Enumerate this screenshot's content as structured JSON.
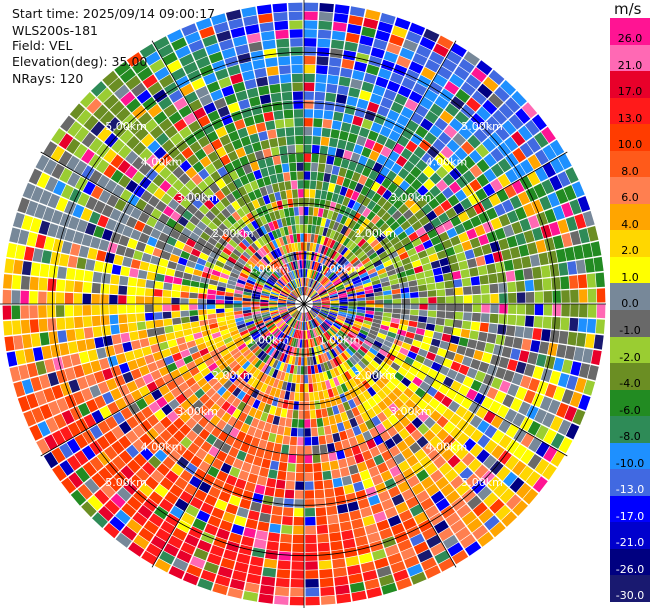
{
  "info": {
    "start_time": "Start time: 2025/09/14 09:00:17",
    "site": "WLS200s-181",
    "field": "Field: VEL",
    "elevation": "Elevation(deg): 35.00",
    "nrays": "NRays: 120"
  },
  "colorbar": {
    "unit": "m/s",
    "ticks": [
      "26.0",
      "21.0",
      "17.0",
      "13.0",
      "10.0",
      "8.0",
      "6.0",
      "4.0",
      "2.0",
      "1.0",
      "0.0",
      "-1.0",
      "-2.0",
      "-4.0",
      "-6.0",
      "-8.0",
      "-10.0",
      "-13.0",
      "-17.0",
      "-21.0",
      "-26.0",
      "-30.0"
    ],
    "colors": [
      "#ff1493",
      "#ff69b4",
      "#e8002a",
      "#ff1a1a",
      "#ff3c00",
      "#ff5a1a",
      "#ff7f50",
      "#ffa500",
      "#ffd700",
      "#ffff00",
      "#778899",
      "#696969",
      "#9acd32",
      "#6b8e23",
      "#228b22",
      "#2e8b57",
      "#1e90ff",
      "#4169e1",
      "#0000ff",
      "#0000cd",
      "#000080",
      "#191970"
    ]
  },
  "chart_data": {
    "type": "ppi",
    "field": "VEL",
    "units": "m/s",
    "nrays": 120,
    "elevation_deg": 35.0,
    "range_rings_km": [
      {
        "km": 1,
        "label": "1.00km"
      },
      {
        "km": 2,
        "label": "2.00km"
      },
      {
        "km": 3,
        "label": "3.00km"
      },
      {
        "km": 4,
        "label": "4.00km"
      },
      {
        "km": 5,
        "label": "5.00km"
      }
    ],
    "max_range_km": 6.0,
    "value_range": [
      -30.0,
      26.0
    ]
  }
}
